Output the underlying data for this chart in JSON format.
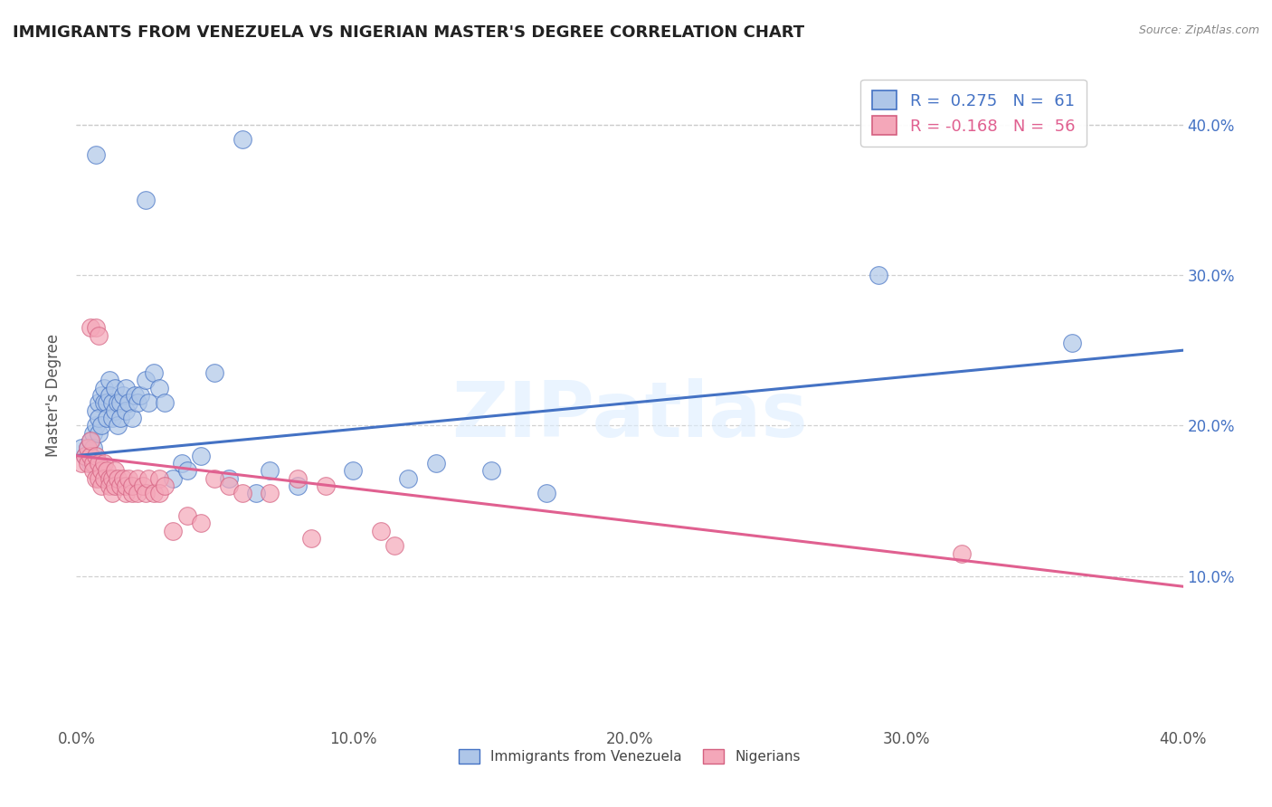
{
  "title": "IMMIGRANTS FROM VENEZUELA VS NIGERIAN MASTER'S DEGREE CORRELATION CHART",
  "source": "Source: ZipAtlas.com",
  "ylabel": "Master's Degree",
  "xlim": [
    0.0,
    0.4
  ],
  "ylim": [
    0.0,
    0.44
  ],
  "xticks": [
    0.0,
    0.1,
    0.2,
    0.3,
    0.4
  ],
  "yticks": [
    0.1,
    0.2,
    0.3,
    0.4
  ],
  "xtick_labels": [
    "0.0%",
    "10.0%",
    "20.0%",
    "30.0%",
    "40.0%"
  ],
  "ytick_labels": [
    "10.0%",
    "20.0%",
    "30.0%",
    "40.0%"
  ],
  "background_color": "#ffffff",
  "legend_R1": "R =  0.275",
  "legend_N1": "N =  61",
  "legend_R2": "R = -0.168",
  "legend_N2": "N =  56",
  "blue_color": "#aec6e8",
  "pink_color": "#f4a7b9",
  "blue_line_color": "#4472c4",
  "pink_line_color": "#e06090",
  "scatter_blue": [
    [
      0.002,
      0.185
    ],
    [
      0.003,
      0.18
    ],
    [
      0.004,
      0.178
    ],
    [
      0.004,
      0.185
    ],
    [
      0.005,
      0.19
    ],
    [
      0.005,
      0.175
    ],
    [
      0.006,
      0.195
    ],
    [
      0.006,
      0.185
    ],
    [
      0.007,
      0.2
    ],
    [
      0.007,
      0.21
    ],
    [
      0.008,
      0.215
    ],
    [
      0.008,
      0.195
    ],
    [
      0.008,
      0.205
    ],
    [
      0.009,
      0.22
    ],
    [
      0.009,
      0.2
    ],
    [
      0.01,
      0.215
    ],
    [
      0.01,
      0.225
    ],
    [
      0.011,
      0.215
    ],
    [
      0.011,
      0.205
    ],
    [
      0.012,
      0.23
    ],
    [
      0.012,
      0.22
    ],
    [
      0.013,
      0.215
    ],
    [
      0.013,
      0.205
    ],
    [
      0.014,
      0.225
    ],
    [
      0.014,
      0.21
    ],
    [
      0.015,
      0.215
    ],
    [
      0.015,
      0.2
    ],
    [
      0.016,
      0.215
    ],
    [
      0.016,
      0.205
    ],
    [
      0.017,
      0.22
    ],
    [
      0.018,
      0.225
    ],
    [
      0.018,
      0.21
    ],
    [
      0.019,
      0.215
    ],
    [
      0.02,
      0.205
    ],
    [
      0.021,
      0.22
    ],
    [
      0.022,
      0.215
    ],
    [
      0.023,
      0.22
    ],
    [
      0.025,
      0.23
    ],
    [
      0.026,
      0.215
    ],
    [
      0.028,
      0.235
    ],
    [
      0.03,
      0.225
    ],
    [
      0.032,
      0.215
    ],
    [
      0.035,
      0.165
    ],
    [
      0.038,
      0.175
    ],
    [
      0.04,
      0.17
    ],
    [
      0.045,
      0.18
    ],
    [
      0.05,
      0.235
    ],
    [
      0.055,
      0.165
    ],
    [
      0.065,
      0.155
    ],
    [
      0.07,
      0.17
    ],
    [
      0.08,
      0.16
    ],
    [
      0.1,
      0.17
    ],
    [
      0.12,
      0.165
    ],
    [
      0.13,
      0.175
    ],
    [
      0.15,
      0.17
    ],
    [
      0.17,
      0.155
    ],
    [
      0.06,
      0.39
    ],
    [
      0.007,
      0.38
    ],
    [
      0.025,
      0.35
    ],
    [
      0.29,
      0.3
    ],
    [
      0.36,
      0.255
    ]
  ],
  "scatter_pink": [
    [
      0.002,
      0.175
    ],
    [
      0.003,
      0.18
    ],
    [
      0.004,
      0.185
    ],
    [
      0.004,
      0.175
    ],
    [
      0.005,
      0.18
    ],
    [
      0.005,
      0.19
    ],
    [
      0.005,
      0.265
    ],
    [
      0.006,
      0.175
    ],
    [
      0.006,
      0.17
    ],
    [
      0.007,
      0.18
    ],
    [
      0.007,
      0.165
    ],
    [
      0.007,
      0.265
    ],
    [
      0.008,
      0.175
    ],
    [
      0.008,
      0.165
    ],
    [
      0.008,
      0.26
    ],
    [
      0.009,
      0.17
    ],
    [
      0.009,
      0.16
    ],
    [
      0.01,
      0.175
    ],
    [
      0.01,
      0.165
    ],
    [
      0.011,
      0.17
    ],
    [
      0.012,
      0.165
    ],
    [
      0.012,
      0.16
    ],
    [
      0.013,
      0.165
    ],
    [
      0.013,
      0.155
    ],
    [
      0.014,
      0.17
    ],
    [
      0.014,
      0.16
    ],
    [
      0.015,
      0.165
    ],
    [
      0.016,
      0.16
    ],
    [
      0.017,
      0.165
    ],
    [
      0.018,
      0.155
    ],
    [
      0.018,
      0.16
    ],
    [
      0.019,
      0.165
    ],
    [
      0.02,
      0.155
    ],
    [
      0.02,
      0.16
    ],
    [
      0.022,
      0.165
    ],
    [
      0.022,
      0.155
    ],
    [
      0.024,
      0.16
    ],
    [
      0.025,
      0.155
    ],
    [
      0.026,
      0.165
    ],
    [
      0.028,
      0.155
    ],
    [
      0.03,
      0.165
    ],
    [
      0.03,
      0.155
    ],
    [
      0.032,
      0.16
    ],
    [
      0.035,
      0.13
    ],
    [
      0.04,
      0.14
    ],
    [
      0.045,
      0.135
    ],
    [
      0.05,
      0.165
    ],
    [
      0.055,
      0.16
    ],
    [
      0.06,
      0.155
    ],
    [
      0.07,
      0.155
    ],
    [
      0.08,
      0.165
    ],
    [
      0.085,
      0.125
    ],
    [
      0.09,
      0.16
    ],
    [
      0.11,
      0.13
    ],
    [
      0.115,
      0.12
    ],
    [
      0.32,
      0.115
    ]
  ],
  "blue_line_x": [
    0.0,
    0.4
  ],
  "blue_line_y": [
    0.18,
    0.25
  ],
  "pink_line_x": [
    0.0,
    0.4
  ],
  "pink_line_y": [
    0.18,
    0.093
  ]
}
